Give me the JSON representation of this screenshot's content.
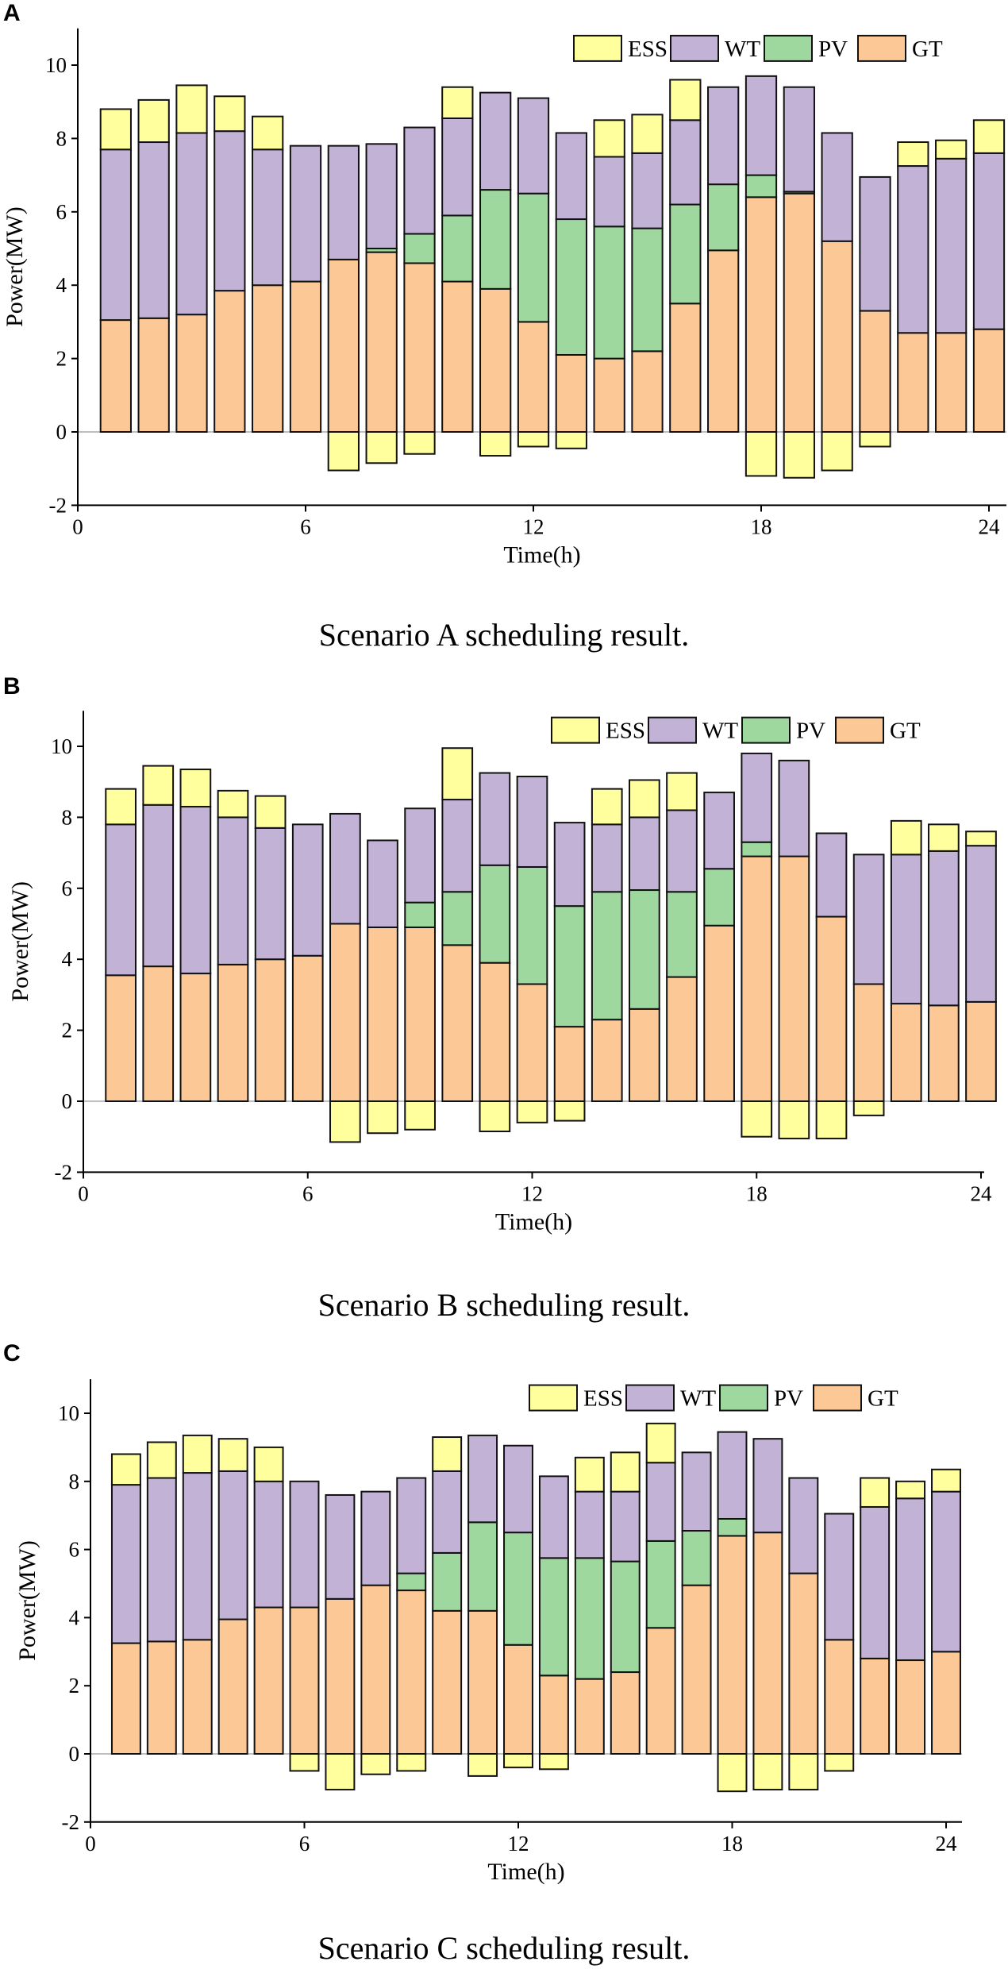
{
  "colors": {
    "ESS": "#FFFF9E",
    "WT": "#C2B2D6",
    "PV": "#9FD89E",
    "GT": "#FCC896"
  },
  "chart_data": [
    {
      "type": "bar",
      "stacked": true,
      "panel": "A",
      "caption": "Scenario A scheduling result.",
      "xlabel": "Time(h)",
      "ylabel": "Power(MW)",
      "xlim": [
        0,
        24.5
      ],
      "ylim": [
        -2,
        11
      ],
      "xticks": [
        "0",
        "6",
        "12",
        "18",
        "24"
      ],
      "yticks": [
        "-2",
        "0",
        "2",
        "4",
        "6",
        "8",
        "10"
      ],
      "legend": [
        "ESS",
        "WT",
        "PV",
        "GT"
      ],
      "legend_position": "top-right",
      "x": [
        1,
        2,
        3,
        4,
        5,
        6,
        7,
        8,
        9,
        10,
        11,
        12,
        13,
        14,
        15,
        16,
        17,
        18,
        19,
        20,
        21,
        22,
        23,
        24
      ],
      "series": [
        {
          "name": "GT",
          "values": [
            3.05,
            3.1,
            3.2,
            3.85,
            4.0,
            4.1,
            4.7,
            4.9,
            4.6,
            4.1,
            3.9,
            3.0,
            2.1,
            2.0,
            2.2,
            3.5,
            4.95,
            6.4,
            6.5,
            5.2,
            3.3,
            2.7,
            2.7,
            2.8
          ]
        },
        {
          "name": "PV",
          "values": [
            0,
            0,
            0,
            0,
            0,
            0,
            0,
            0.1,
            0.8,
            1.8,
            2.7,
            3.5,
            3.7,
            3.6,
            3.35,
            2.7,
            1.8,
            0.6,
            0.05,
            0,
            0,
            0,
            0,
            0
          ]
        },
        {
          "name": "WT",
          "values": [
            4.65,
            4.8,
            4.95,
            4.35,
            3.7,
            3.7,
            3.1,
            2.85,
            2.9,
            2.65,
            2.65,
            2.6,
            2.35,
            1.9,
            2.05,
            2.3,
            2.65,
            2.7,
            2.85,
            2.95,
            3.65,
            4.55,
            4.75,
            4.8
          ]
        },
        {
          "name": "ESS",
          "values": [
            1.1,
            1.15,
            1.3,
            0.95,
            0.9,
            0,
            -1.05,
            -0.85,
            -0.6,
            0.85,
            -0.65,
            -0.4,
            -0.45,
            1.0,
            1.05,
            1.1,
            0,
            -1.2,
            -1.25,
            -1.05,
            -0.4,
            0.65,
            0.5,
            0.9
          ]
        }
      ]
    },
    {
      "type": "bar",
      "stacked": true,
      "panel": "B",
      "caption": "Scenario B scheduling result.",
      "xlabel": "Time(h)",
      "ylabel": "Power(MW)",
      "xlim": [
        0,
        24.5
      ],
      "ylim": [
        -2,
        11
      ],
      "xticks": [
        "0",
        "6",
        "12",
        "18",
        "24"
      ],
      "yticks": [
        "-2",
        "0",
        "2",
        "4",
        "6",
        "8",
        "10"
      ],
      "legend": [
        "ESS",
        "WT",
        "PV",
        "GT"
      ],
      "legend_position": "top-right",
      "x": [
        1,
        2,
        3,
        4,
        5,
        6,
        7,
        8,
        9,
        10,
        11,
        12,
        13,
        14,
        15,
        16,
        17,
        18,
        19,
        20,
        21,
        22,
        23,
        24
      ],
      "series": [
        {
          "name": "GT",
          "values": [
            3.55,
            3.8,
            3.6,
            3.85,
            4.0,
            4.1,
            5.0,
            4.9,
            4.9,
            4.4,
            3.9,
            3.3,
            2.1,
            2.3,
            2.6,
            3.5,
            4.95,
            6.9,
            6.9,
            5.2,
            3.3,
            2.75,
            2.7,
            2.8
          ]
        },
        {
          "name": "PV",
          "values": [
            0,
            0,
            0,
            0,
            0,
            0,
            0,
            0,
            0.7,
            1.5,
            2.75,
            3.3,
            3.4,
            3.6,
            3.35,
            2.4,
            1.6,
            0.4,
            0,
            0,
            0,
            0,
            0,
            0
          ]
        },
        {
          "name": "WT",
          "values": [
            4.25,
            4.55,
            4.7,
            4.15,
            3.7,
            3.7,
            3.1,
            2.45,
            2.65,
            2.6,
            2.6,
            2.55,
            2.35,
            1.9,
            2.05,
            2.3,
            2.15,
            2.5,
            2.7,
            2.35,
            3.65,
            4.2,
            4.35,
            4.4
          ]
        },
        {
          "name": "ESS",
          "values": [
            1.0,
            1.1,
            1.05,
            0.75,
            0.9,
            0,
            -1.15,
            -0.9,
            -0.8,
            1.45,
            -0.85,
            -0.6,
            -0.55,
            1.0,
            1.05,
            1.05,
            0,
            -1.0,
            -1.05,
            -1.05,
            -0.4,
            0.95,
            0.75,
            0.4
          ]
        }
      ]
    },
    {
      "type": "bar",
      "stacked": true,
      "panel": "C",
      "caption": "Scenario C scheduling result.",
      "xlabel": "Time(h)",
      "ylabel": "Power(MW)",
      "xlim": [
        0,
        24.5
      ],
      "ylim": [
        -2,
        11
      ],
      "xticks": [
        "0",
        "6",
        "12",
        "18",
        "24"
      ],
      "yticks": [
        "-2",
        "0",
        "2",
        "4",
        "6",
        "8",
        "10"
      ],
      "legend": [
        "ESS",
        "WT",
        "PV",
        "GT"
      ],
      "legend_position": "top-right",
      "x": [
        1,
        2,
        3,
        4,
        5,
        6,
        7,
        8,
        9,
        10,
        11,
        12,
        13,
        14,
        15,
        16,
        17,
        18,
        19,
        20,
        21,
        22,
        23,
        24
      ],
      "series": [
        {
          "name": "GT",
          "values": [
            3.25,
            3.3,
            3.35,
            3.95,
            4.3,
            4.3,
            4.55,
            4.95,
            4.8,
            4.2,
            4.2,
            3.2,
            2.3,
            2.2,
            2.4,
            3.7,
            4.95,
            6.4,
            6.5,
            5.3,
            3.35,
            2.8,
            2.75,
            3.0
          ]
        },
        {
          "name": "PV",
          "values": [
            0,
            0,
            0,
            0,
            0,
            0,
            0,
            0,
            0.5,
            1.7,
            2.6,
            3.3,
            3.45,
            3.55,
            3.25,
            2.55,
            1.6,
            0.5,
            0,
            0,
            0,
            0,
            0,
            0
          ]
        },
        {
          "name": "WT",
          "values": [
            4.65,
            4.8,
            4.9,
            4.35,
            3.7,
            3.7,
            3.05,
            2.75,
            2.8,
            2.4,
            2.55,
            2.55,
            2.4,
            1.95,
            2.05,
            2.3,
            2.3,
            2.55,
            2.75,
            2.8,
            3.7,
            4.45,
            4.75,
            4.7
          ]
        },
        {
          "name": "ESS",
          "values": [
            0.9,
            1.05,
            1.1,
            0.95,
            1.0,
            -0.5,
            -1.05,
            -0.6,
            -0.5,
            1.0,
            -0.65,
            -0.4,
            -0.45,
            1.0,
            1.15,
            1.15,
            0,
            -1.1,
            -1.05,
            -1.05,
            -0.5,
            0.85,
            0.5,
            0.65
          ]
        }
      ]
    }
  ]
}
